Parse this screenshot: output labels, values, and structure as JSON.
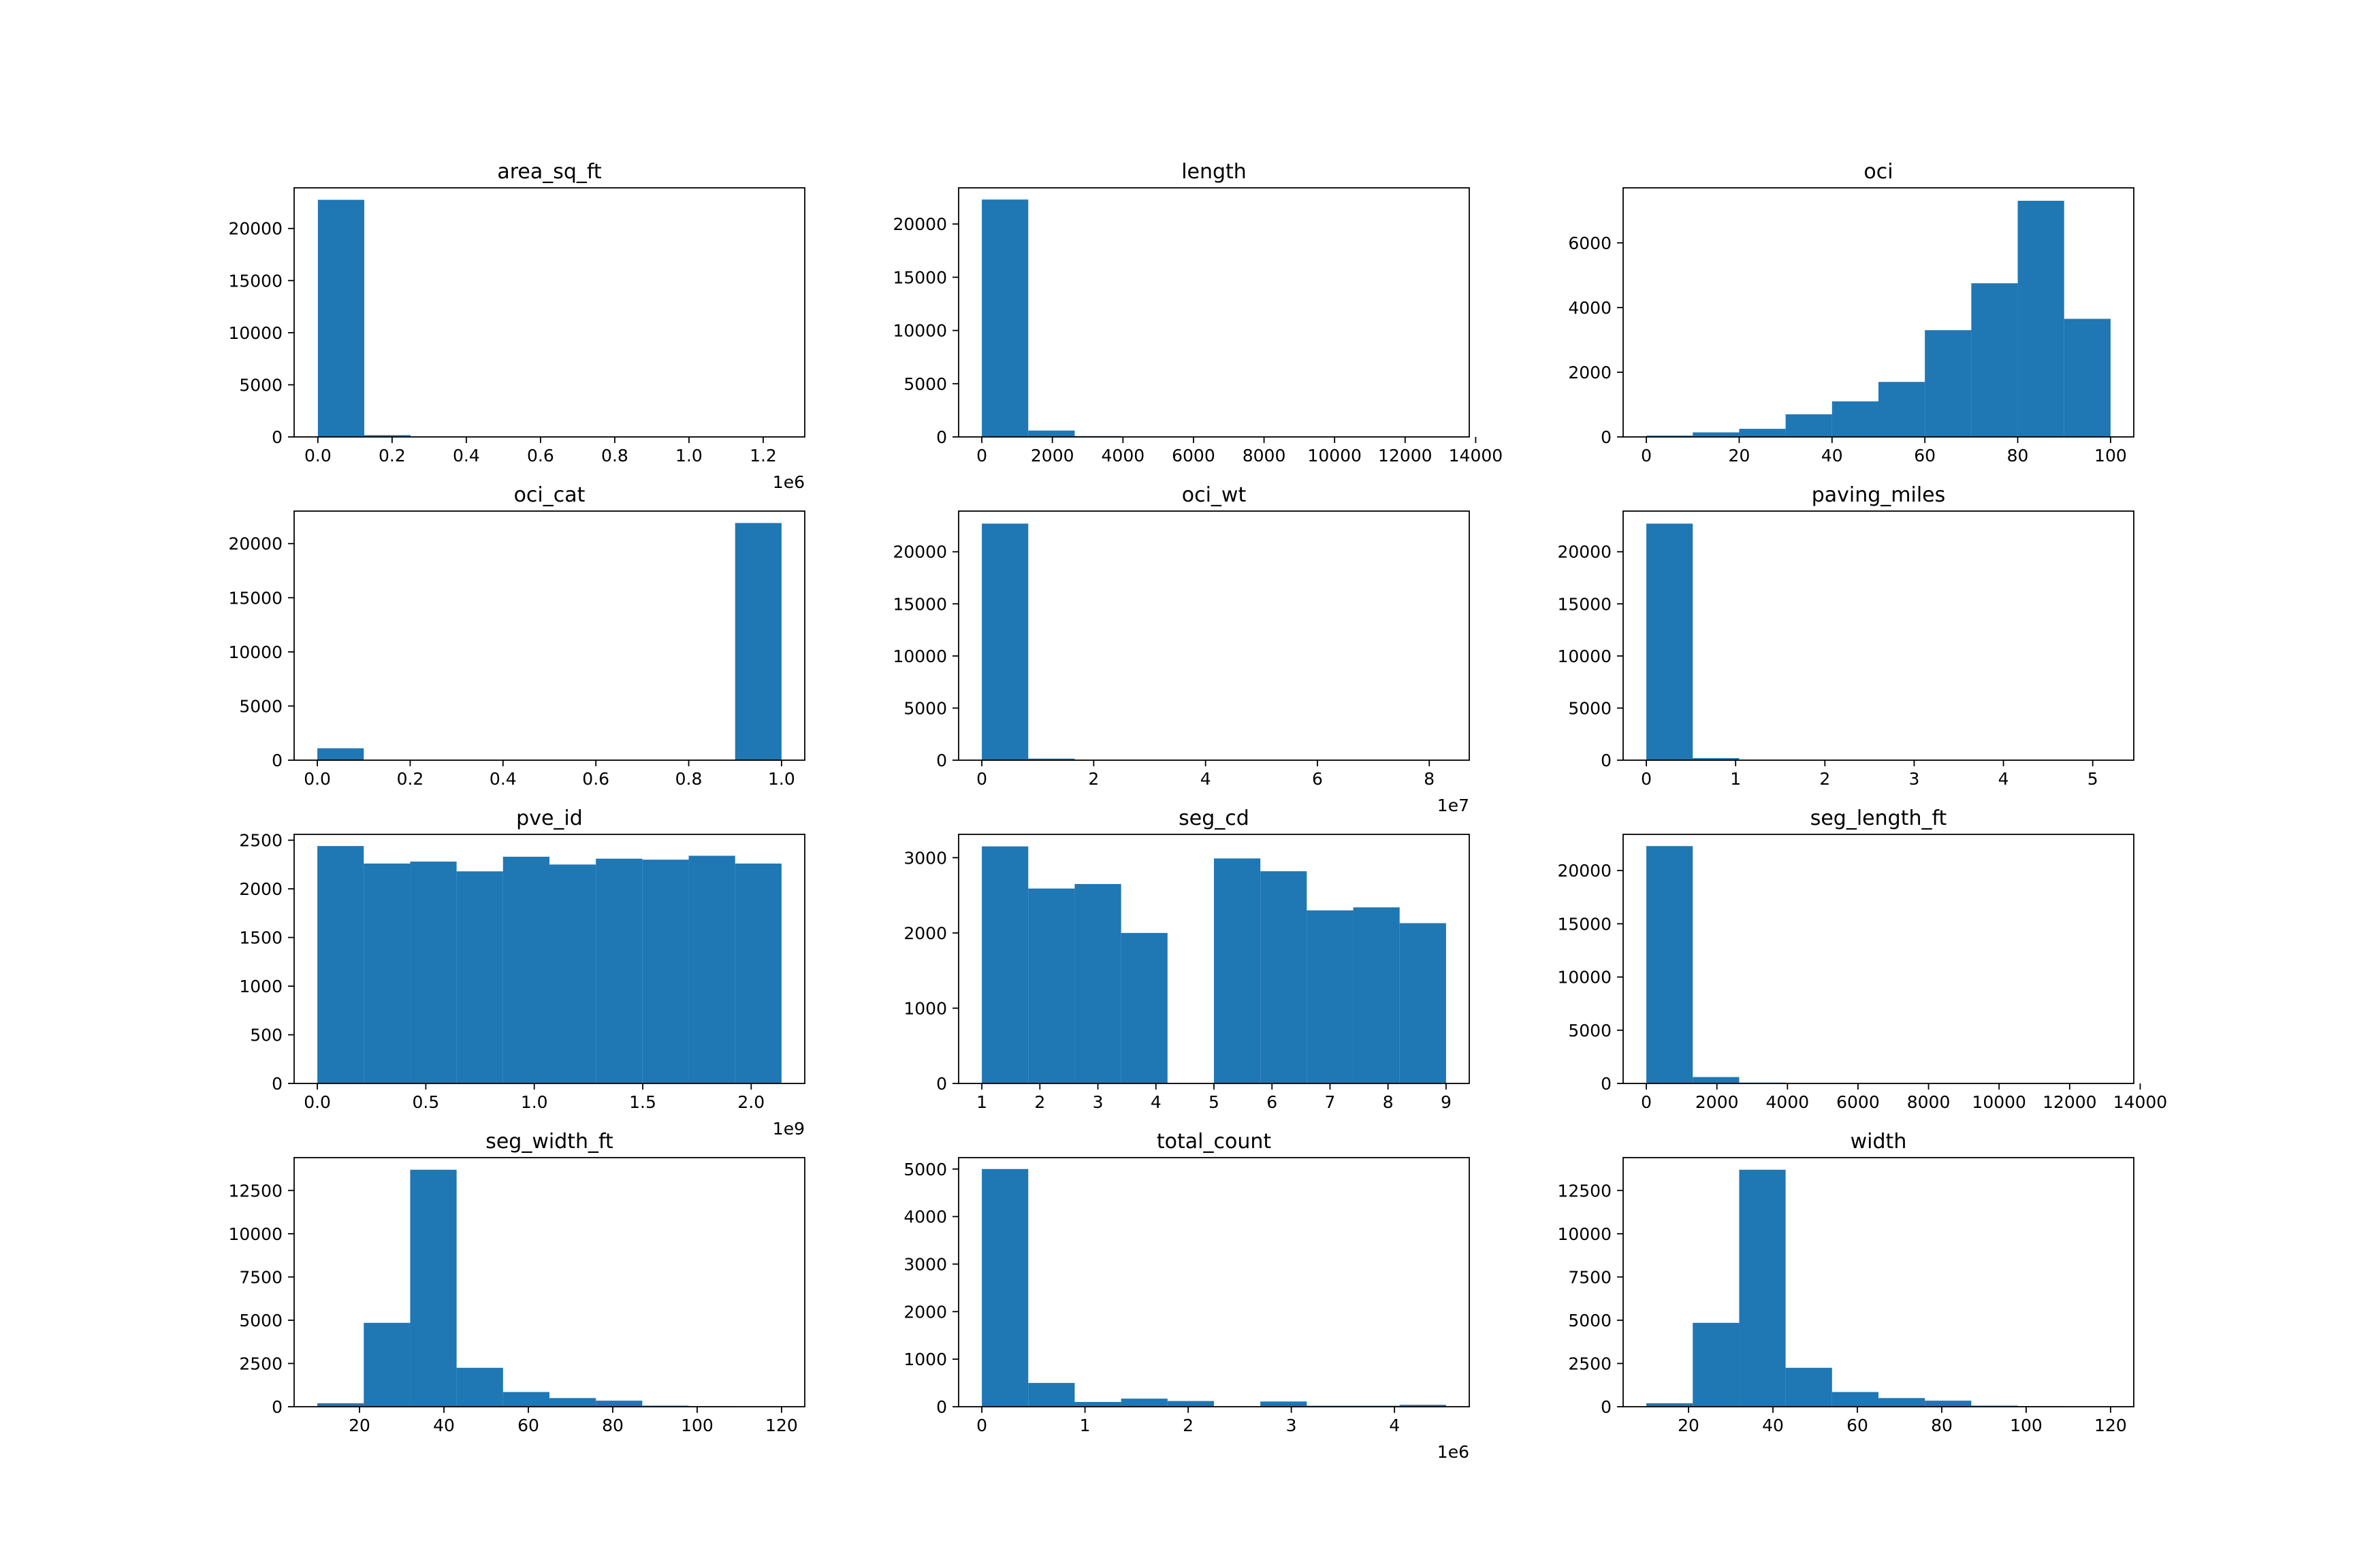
{
  "chart_data": [
    {
      "type": "bar",
      "title": "area_sq_ft",
      "xlabel": "",
      "ylabel": "",
      "xlim": [
        -64000,
        1312000
      ],
      "ylim": [
        0,
        23900
      ],
      "x_ticks": [
        0,
        200000,
        400000,
        600000,
        800000,
        1000000,
        1200000
      ],
      "x_tick_labels": [
        "0.0",
        "0.2",
        "0.4",
        "0.6",
        "0.8",
        "1.0",
        "1.2"
      ],
      "x_offset_label": "1e6",
      "y_ticks": [
        0,
        5000,
        10000,
        15000,
        20000
      ],
      "y_tick_labels": [
        "0",
        "5000",
        "10000",
        "15000",
        "20000"
      ],
      "bin_edges": [
        0,
        125000,
        250000,
        375000,
        500000,
        625000,
        750000,
        875000,
        1000000,
        1125000,
        1250000
      ],
      "values": [
        22750,
        170,
        25,
        10,
        5,
        2,
        1,
        1,
        0,
        1
      ],
      "grid": false,
      "color": "#1f77b4"
    },
    {
      "type": "bar",
      "title": "length",
      "xlabel": "",
      "ylabel": "",
      "xlim": [
        -658,
        13818
      ],
      "ylim": [
        0,
        23400
      ],
      "x_ticks": [
        0,
        2000,
        4000,
        6000,
        8000,
        10000,
        12000,
        14000
      ],
      "x_tick_labels": [
        "0",
        "2000",
        "4000",
        "6000",
        "8000",
        "10000",
        "12000",
        "14000"
      ],
      "y_ticks": [
        0,
        5000,
        10000,
        15000,
        20000
      ],
      "y_tick_labels": [
        "0",
        "5000",
        "10000",
        "15000",
        "20000"
      ],
      "bin_edges": [
        0,
        1316,
        2632,
        3948,
        5264,
        6580,
        7896,
        9212,
        10528,
        11844,
        13160
      ],
      "values": [
        22300,
        600,
        80,
        20,
        8,
        4,
        2,
        1,
        1,
        1
      ],
      "grid": false,
      "color": "#1f77b4"
    },
    {
      "type": "bar",
      "title": "oci",
      "xlabel": "",
      "ylabel": "",
      "xlim": [
        -5,
        105
      ],
      "ylim": [
        0,
        7700
      ],
      "x_ticks": [
        0,
        20,
        40,
        60,
        80,
        100
      ],
      "x_tick_labels": [
        "0",
        "20",
        "40",
        "60",
        "80",
        "100"
      ],
      "y_ticks": [
        0,
        2000,
        4000,
        6000
      ],
      "y_tick_labels": [
        "0",
        "2000",
        "4000",
        "6000"
      ],
      "bin_edges": [
        0,
        10,
        20,
        30,
        40,
        50,
        60,
        70,
        80,
        90,
        100
      ],
      "values": [
        40,
        140,
        250,
        700,
        1100,
        1700,
        3300,
        4750,
        7300,
        3650
      ],
      "grid": false,
      "color": "#1f77b4"
    },
    {
      "type": "bar",
      "title": "oci_cat",
      "xlabel": "",
      "ylabel": "",
      "xlim": [
        -0.05,
        1.05
      ],
      "ylim": [
        0,
        23000
      ],
      "x_ticks": [
        0,
        0.2,
        0.4,
        0.6,
        0.8,
        1.0
      ],
      "x_tick_labels": [
        "0.0",
        "0.2",
        "0.4",
        "0.6",
        "0.8",
        "1.0"
      ],
      "y_ticks": [
        0,
        5000,
        10000,
        15000,
        20000
      ],
      "y_tick_labels": [
        "0",
        "5000",
        "10000",
        "15000",
        "20000"
      ],
      "bin_edges": [
        0,
        0.1,
        0.2,
        0.3,
        0.4,
        0.5,
        0.6,
        0.7,
        0.8,
        0.9,
        1.0
      ],
      "values": [
        1100,
        0,
        0,
        0,
        0,
        0,
        0,
        0,
        0,
        21900
      ],
      "grid": false,
      "color": "#1f77b4"
    },
    {
      "type": "bar",
      "title": "oci_wt",
      "xlabel": "",
      "ylabel": "",
      "xlim": [
        -4150000,
        87150000
      ],
      "ylim": [
        0,
        23900
      ],
      "x_ticks": [
        0,
        20000000,
        40000000,
        60000000,
        80000000
      ],
      "x_tick_labels": [
        "0",
        "2",
        "4",
        "6",
        "8"
      ],
      "x_offset_label": "1e7",
      "y_ticks": [
        0,
        5000,
        10000,
        15000,
        20000
      ],
      "y_tick_labels": [
        "0",
        "5000",
        "10000",
        "15000",
        "20000"
      ],
      "bin_edges": [
        0,
        8300000,
        16600000,
        24900000,
        33200000,
        41500000,
        49800000,
        58100000,
        66400000,
        74700000,
        83000000
      ],
      "values": [
        22700,
        150,
        30,
        10,
        5,
        2,
        1,
        1,
        0,
        1
      ],
      "grid": false,
      "color": "#1f77b4"
    },
    {
      "type": "bar",
      "title": "paving_miles",
      "xlabel": "",
      "ylabel": "",
      "xlim": [
        -0.26,
        5.46
      ],
      "ylim": [
        0,
        23900
      ],
      "x_ticks": [
        0,
        1,
        2,
        3,
        4,
        5
      ],
      "x_tick_labels": [
        "0",
        "1",
        "2",
        "3",
        "4",
        "5"
      ],
      "y_ticks": [
        0,
        5000,
        10000,
        15000,
        20000
      ],
      "y_tick_labels": [
        "0",
        "5000",
        "10000",
        "15000",
        "20000"
      ],
      "bin_edges": [
        0,
        0.52,
        1.04,
        1.56,
        2.08,
        2.6,
        3.12,
        3.64,
        4.16,
        4.68,
        5.2
      ],
      "values": [
        22700,
        200,
        25,
        8,
        3,
        1,
        1,
        0,
        0,
        1
      ],
      "grid": false,
      "color": "#1f77b4"
    },
    {
      "type": "bar",
      "title": "pve_id",
      "xlabel": "",
      "ylabel": "",
      "xlim": [
        -107000000,
        2247000000
      ],
      "ylim": [
        0,
        2560
      ],
      "x_ticks": [
        0,
        500000000,
        1000000000,
        1500000000,
        2000000000
      ],
      "x_tick_labels": [
        "0.0",
        "0.5",
        "1.0",
        "1.5",
        "2.0"
      ],
      "x_offset_label": "1e9",
      "y_ticks": [
        0,
        500,
        1000,
        1500,
        2000,
        2500
      ],
      "y_tick_labels": [
        "0",
        "500",
        "1000",
        "1500",
        "2000",
        "2500"
      ],
      "bin_edges": [
        0,
        214000000,
        428000000,
        642000000,
        856000000,
        1070000000,
        1284000000,
        1498000000,
        1712000000,
        1926000000,
        2140000000
      ],
      "values": [
        2440,
        2260,
        2280,
        2180,
        2330,
        2250,
        2310,
        2300,
        2340,
        2260
      ],
      "grid": false,
      "color": "#1f77b4"
    },
    {
      "type": "bar",
      "title": "seg_cd",
      "xlabel": "",
      "ylabel": "",
      "xlim": [
        0.6,
        9.4
      ],
      "ylim": [
        0,
        3310
      ],
      "x_ticks": [
        1,
        2,
        3,
        4,
        5,
        6,
        7,
        8,
        9
      ],
      "x_tick_labels": [
        "1",
        "2",
        "3",
        "4",
        "5",
        "6",
        "7",
        "8",
        "9"
      ],
      "y_ticks": [
        0,
        1000,
        2000,
        3000
      ],
      "y_tick_labels": [
        "0",
        "1000",
        "2000",
        "3000"
      ],
      "bin_edges": [
        1,
        1.8,
        2.6,
        3.4,
        4.2,
        5.0,
        5.8,
        6.6,
        7.4,
        8.2,
        9.0
      ],
      "values": [
        3150,
        2590,
        2650,
        2000,
        0,
        2990,
        2820,
        2300,
        2340,
        2130
      ],
      "grid": false,
      "color": "#1f77b4"
    },
    {
      "type": "bar",
      "title": "seg_length_ft",
      "xlabel": "",
      "ylabel": "",
      "xlim": [
        -658,
        13818
      ],
      "ylim": [
        0,
        23400
      ],
      "x_ticks": [
        0,
        2000,
        4000,
        6000,
        8000,
        10000,
        12000,
        14000
      ],
      "x_tick_labels": [
        "0",
        "2000",
        "4000",
        "6000",
        "8000",
        "10000",
        "12000",
        "14000"
      ],
      "y_ticks": [
        0,
        5000,
        10000,
        15000,
        20000
      ],
      "y_tick_labels": [
        "0",
        "5000",
        "10000",
        "15000",
        "20000"
      ],
      "bin_edges": [
        0,
        1316,
        2632,
        3948,
        5264,
        6580,
        7896,
        9212,
        10528,
        11844,
        13160
      ],
      "values": [
        22300,
        600,
        80,
        20,
        8,
        4,
        2,
        1,
        1,
        1
      ],
      "grid": false,
      "color": "#1f77b4"
    },
    {
      "type": "bar",
      "title": "seg_width_ft",
      "xlabel": "",
      "ylabel": "",
      "xlim": [
        4.5,
        125.5
      ],
      "ylim": [
        0,
        14400
      ],
      "x_ticks": [
        20,
        40,
        60,
        80,
        100,
        120
      ],
      "x_tick_labels": [
        "20",
        "40",
        "60",
        "80",
        "100",
        "120"
      ],
      "y_ticks": [
        0,
        2500,
        5000,
        7500,
        10000,
        12500
      ],
      "y_tick_labels": [
        "0",
        "2500",
        "5000",
        "7500",
        "10000",
        "12500"
      ],
      "bin_edges": [
        10,
        21,
        32,
        43,
        54,
        65,
        76,
        87,
        98,
        109,
        120
      ],
      "values": [
        200,
        4850,
        13700,
        2250,
        850,
        500,
        350,
        60,
        30,
        10
      ],
      "grid": false,
      "color": "#1f77b4"
    },
    {
      "type": "bar",
      "title": "total_count",
      "xlabel": "",
      "ylabel": "",
      "xlim": [
        -225000,
        4725000
      ],
      "ylim": [
        0,
        5240
      ],
      "x_ticks": [
        0,
        1000000,
        2000000,
        3000000,
        4000000
      ],
      "x_tick_labels": [
        "0",
        "1",
        "2",
        "3",
        "4"
      ],
      "x_offset_label": "1e6",
      "y_ticks": [
        0,
        1000,
        2000,
        3000,
        4000,
        5000
      ],
      "y_tick_labels": [
        "0",
        "1000",
        "2000",
        "3000",
        "4000",
        "5000"
      ],
      "bin_edges": [
        0,
        450000,
        900000,
        1350000,
        1800000,
        2250000,
        2700000,
        3150000,
        3600000,
        4050000,
        4500000
      ],
      "values": [
        5000,
        500,
        100,
        170,
        120,
        0,
        110,
        20,
        20,
        40
      ],
      "grid": false,
      "color": "#1f77b4"
    },
    {
      "type": "bar",
      "title": "width",
      "xlabel": "",
      "ylabel": "",
      "xlim": [
        4.5,
        125.5
      ],
      "ylim": [
        0,
        14400
      ],
      "x_ticks": [
        20,
        40,
        60,
        80,
        100,
        120
      ],
      "x_tick_labels": [
        "20",
        "40",
        "60",
        "80",
        "100",
        "120"
      ],
      "y_ticks": [
        0,
        2500,
        5000,
        7500,
        10000,
        12500
      ],
      "y_tick_labels": [
        "0",
        "2500",
        "5000",
        "7500",
        "10000",
        "12500"
      ],
      "bin_edges": [
        10,
        21,
        32,
        43,
        54,
        65,
        76,
        87,
        98,
        109,
        120
      ],
      "values": [
        200,
        4850,
        13700,
        2250,
        850,
        500,
        350,
        60,
        30,
        10
      ],
      "grid": false,
      "color": "#1f77b4"
    }
  ]
}
